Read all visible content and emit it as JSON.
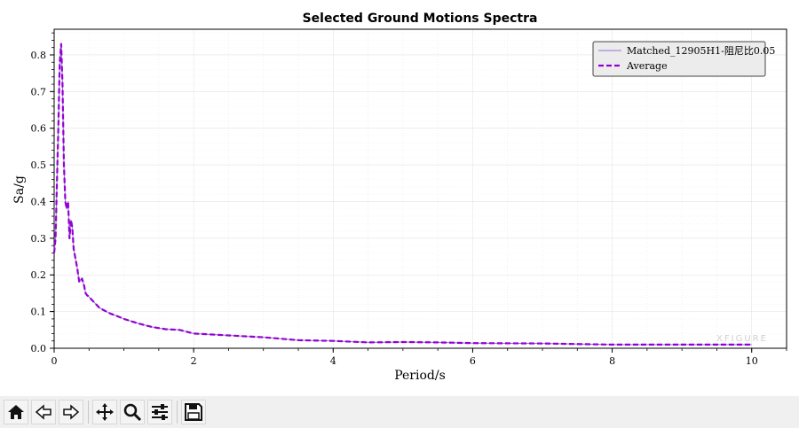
{
  "chart_data": {
    "type": "line",
    "title": "Selected Ground Motions Spectra",
    "xlabel": "Period/s",
    "ylabel": "Sa/g",
    "xlim": [
      0,
      10.5
    ],
    "ylim": [
      0,
      0.87
    ],
    "xticks": [
      "0",
      "2",
      "4",
      "6",
      "8",
      "10"
    ],
    "yticks": [
      "0.0",
      "0.1",
      "0.2",
      "0.3",
      "0.4",
      "0.5",
      "0.6",
      "0.7",
      "0.8"
    ],
    "grid": true,
    "legend_position": "top-right",
    "series": [
      {
        "name": "Matched_12905H1-阻尼比0.05",
        "color": "#9370db",
        "style": "solid-thin",
        "x": [
          0,
          0.02,
          0.04,
          0.06,
          0.08,
          0.1,
          0.12,
          0.14,
          0.16,
          0.18,
          0.2,
          0.22,
          0.24,
          0.26,
          0.28,
          0.3,
          0.33,
          0.36,
          0.4,
          0.43,
          0.45,
          0.47,
          0.5,
          0.55,
          0.6,
          0.65,
          0.7,
          0.75,
          0.8,
          0.9,
          1.0,
          1.2,
          1.4,
          1.6,
          1.8,
          2.0,
          2.5,
          3.0,
          3.5,
          4.0,
          4.5,
          5.0,
          5.5,
          6.0,
          7.0,
          8.0,
          9.0,
          10.0
        ],
        "y": [
          0.26,
          0.3,
          0.45,
          0.6,
          0.78,
          0.83,
          0.72,
          0.5,
          0.4,
          0.38,
          0.4,
          0.3,
          0.35,
          0.33,
          0.27,
          0.25,
          0.22,
          0.18,
          0.19,
          0.17,
          0.15,
          0.145,
          0.14,
          0.13,
          0.12,
          0.11,
          0.105,
          0.1,
          0.095,
          0.088,
          0.08,
          0.068,
          0.058,
          0.052,
          0.05,
          0.04,
          0.035,
          0.03,
          0.022,
          0.02,
          0.016,
          0.017,
          0.016,
          0.014,
          0.013,
          0.01,
          0.01,
          0.01
        ]
      },
      {
        "name": "Average",
        "color": "#9400d3",
        "style": "dashed-thick",
        "x": [
          0,
          0.02,
          0.04,
          0.06,
          0.08,
          0.1,
          0.12,
          0.14,
          0.16,
          0.18,
          0.2,
          0.22,
          0.24,
          0.26,
          0.28,
          0.3,
          0.33,
          0.36,
          0.4,
          0.43,
          0.45,
          0.47,
          0.5,
          0.55,
          0.6,
          0.65,
          0.7,
          0.75,
          0.8,
          0.9,
          1.0,
          1.2,
          1.4,
          1.6,
          1.8,
          2.0,
          2.5,
          3.0,
          3.5,
          4.0,
          4.5,
          5.0,
          5.5,
          6.0,
          7.0,
          8.0,
          9.0,
          10.0
        ],
        "y": [
          0.26,
          0.3,
          0.45,
          0.6,
          0.78,
          0.83,
          0.72,
          0.5,
          0.4,
          0.38,
          0.4,
          0.3,
          0.35,
          0.33,
          0.27,
          0.25,
          0.22,
          0.18,
          0.19,
          0.17,
          0.15,
          0.145,
          0.14,
          0.13,
          0.12,
          0.11,
          0.105,
          0.1,
          0.095,
          0.088,
          0.08,
          0.068,
          0.058,
          0.052,
          0.05,
          0.04,
          0.035,
          0.03,
          0.022,
          0.02,
          0.016,
          0.017,
          0.016,
          0.014,
          0.013,
          0.01,
          0.01,
          0.01
        ]
      }
    ],
    "watermark": "XFIGURE"
  },
  "toolbar": {
    "buttons": [
      {
        "name": "home-button",
        "icon": "home-icon"
      },
      {
        "name": "back-button",
        "icon": "back-arrow-icon"
      },
      {
        "name": "forward-button",
        "icon": "forward-arrow-icon"
      },
      {
        "name": "pan-button",
        "icon": "move-icon"
      },
      {
        "name": "zoom-button",
        "icon": "magnifier-icon"
      },
      {
        "name": "configure-subplots-button",
        "icon": "sliders-icon"
      },
      {
        "name": "save-button",
        "icon": "floppy-disk-icon"
      }
    ]
  }
}
